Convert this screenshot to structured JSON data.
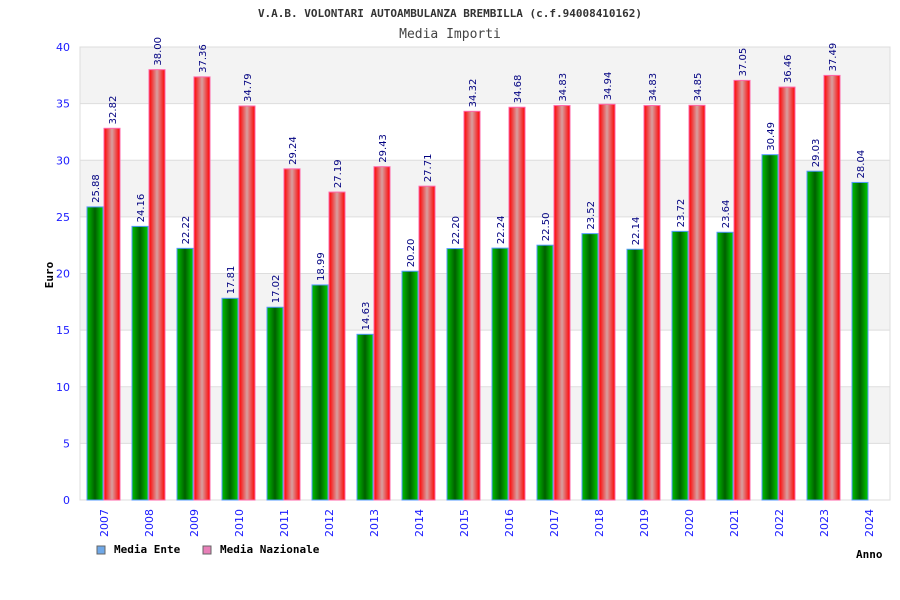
{
  "chart_data": {
    "type": "bar",
    "title": "V.A.B. VOLONTARI AUTOAMBULANZA BREMBILLA (c.f.94008410162)",
    "subtitle": "Media Importi",
    "xlabel": "Anno",
    "ylabel": "Euro",
    "ylim": [
      0,
      40
    ],
    "yticks": [
      0,
      5,
      10,
      15,
      20,
      25,
      30,
      35,
      40
    ],
    "grid": true,
    "legend_position": "bottom-left",
    "categories": [
      "2007",
      "2008",
      "2009",
      "2010",
      "2011",
      "2012",
      "2013",
      "2014",
      "2015",
      "2016",
      "2017",
      "2018",
      "2019",
      "2020",
      "2021",
      "2022",
      "2023",
      "2024"
    ],
    "series": [
      {
        "name": "Media Ente",
        "color": "#00b000",
        "legend_color": "#6fa8e8",
        "values": [
          25.88,
          24.16,
          22.22,
          17.81,
          17.02,
          18.99,
          14.63,
          20.2,
          22.2,
          22.24,
          22.5,
          23.52,
          22.14,
          23.72,
          23.64,
          30.49,
          29.03,
          28.04
        ]
      },
      {
        "name": "Media Nazionale",
        "color": "#ff0000",
        "legend_color": "#e87fb8",
        "values": [
          32.82,
          38.0,
          37.36,
          34.79,
          29.24,
          27.19,
          29.43,
          27.71,
          34.32,
          34.68,
          34.83,
          34.94,
          34.83,
          34.85,
          37.05,
          36.46,
          37.49,
          null
        ]
      }
    ]
  }
}
